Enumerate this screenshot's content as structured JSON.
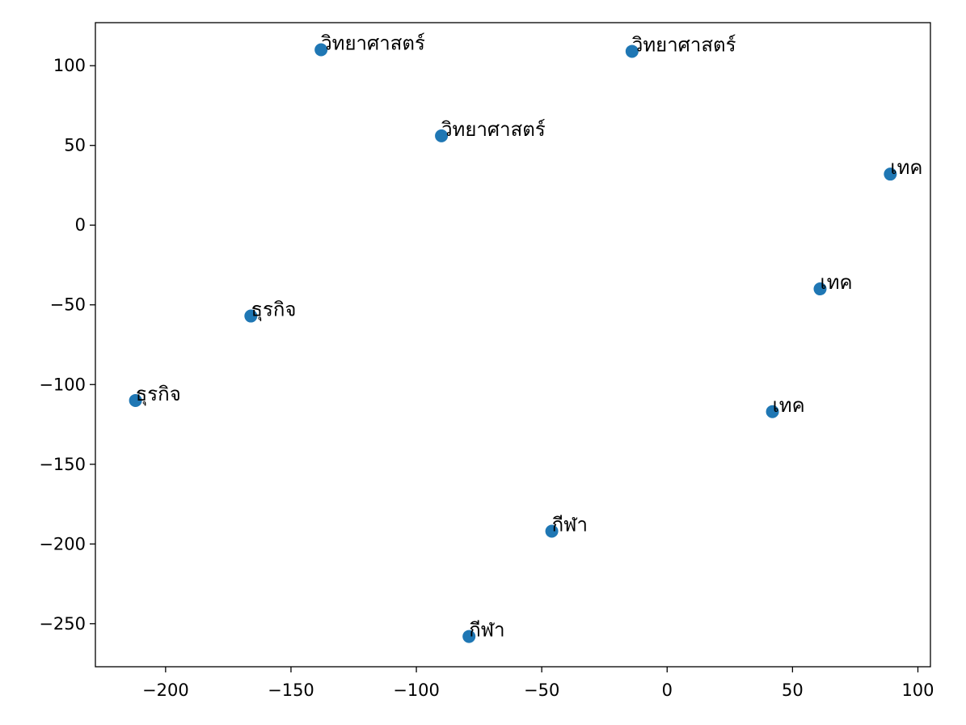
{
  "chart_data": {
    "type": "scatter",
    "title": "",
    "xlabel": "",
    "ylabel": "",
    "xlim": [
      -228,
      105
    ],
    "ylim": [
      -277,
      127
    ],
    "xticks": [
      -200,
      -150,
      -100,
      -50,
      0,
      50,
      100
    ],
    "yticks": [
      -250,
      -200,
      -150,
      -100,
      -50,
      0,
      50,
      100
    ],
    "xtick_labels": [
      "−200",
      "−150",
      "−100",
      "−50",
      "0",
      "50",
      "100"
    ],
    "ytick_labels": [
      "−250",
      "−200",
      "−150",
      "−100",
      "−50",
      "0",
      "50",
      "100"
    ],
    "grid": false,
    "marker_color": "#1f77b4",
    "points": [
      {
        "x": -138,
        "y": 110,
        "label": "วิทยาศาสตร์"
      },
      {
        "x": -14,
        "y": 109,
        "label": "วิทยาศาสตร์"
      },
      {
        "x": -90,
        "y": 56,
        "label": "วิทยาศาสตร์"
      },
      {
        "x": 89,
        "y": 32,
        "label": "เทค"
      },
      {
        "x": 61,
        "y": -40,
        "label": "เทค"
      },
      {
        "x": 42,
        "y": -117,
        "label": "เทค"
      },
      {
        "x": -166,
        "y": -57,
        "label": "ธุรกิจ"
      },
      {
        "x": -212,
        "y": -110,
        "label": "ธุรกิจ"
      },
      {
        "x": -46,
        "y": -192,
        "label": "กีฬา"
      },
      {
        "x": -79,
        "y": -258,
        "label": "กีฬา"
      }
    ]
  }
}
